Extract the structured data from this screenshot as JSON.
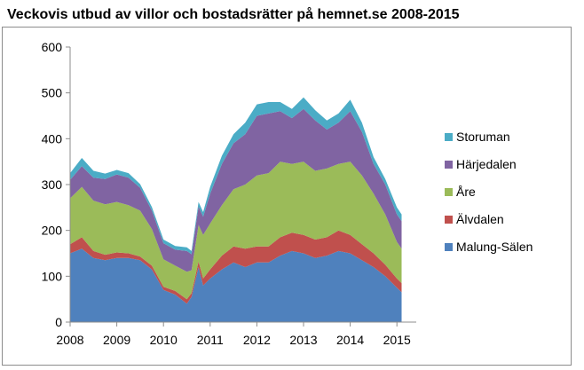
{
  "chart_data": {
    "type": "area",
    "stacked": true,
    "title": "Veckovis utbud av villor och bostadsrätter på hemnet.se 2008-2015",
    "xlabel": "",
    "ylabel": "",
    "xlim": [
      2008,
      2015.2
    ],
    "ylim": [
      0,
      600
    ],
    "yticks": [
      0,
      100,
      200,
      300,
      400,
      500,
      600
    ],
    "xticks": [
      "2008",
      "2009",
      "2010",
      "2011",
      "2012",
      "2013",
      "2014",
      "2015"
    ],
    "grid": false,
    "legend_position": "right",
    "x": [
      2008.0,
      2008.25,
      2008.5,
      2008.75,
      2009.0,
      2009.25,
      2009.5,
      2009.75,
      2010.0,
      2010.25,
      2010.5,
      2010.6,
      2010.75,
      2010.85,
      2011.0,
      2011.25,
      2011.5,
      2011.75,
      2012.0,
      2012.25,
      2012.5,
      2012.75,
      2013.0,
      2013.25,
      2013.5,
      2013.75,
      2014.0,
      2014.25,
      2014.5,
      2014.75,
      2015.0,
      2015.1
    ],
    "series": [
      {
        "name": "Malung-Sälen",
        "color": "#4f81bd",
        "values": [
          150,
          160,
          140,
          135,
          140,
          140,
          135,
          115,
          70,
          60,
          40,
          55,
          120,
          80,
          95,
          115,
          130,
          120,
          130,
          130,
          145,
          155,
          150,
          140,
          145,
          155,
          150,
          135,
          120,
          100,
          75,
          65
        ]
      },
      {
        "name": "Älvdalen",
        "color": "#c0504d",
        "values": [
          20,
          25,
          15,
          12,
          12,
          10,
          8,
          8,
          7,
          8,
          10,
          8,
          12,
          15,
          20,
          30,
          35,
          40,
          35,
          35,
          40,
          40,
          40,
          40,
          40,
          45,
          40,
          35,
          30,
          25,
          20,
          20
        ]
      },
      {
        "name": "Åre",
        "color": "#9bbb59",
        "values": [
          100,
          110,
          110,
          110,
          110,
          105,
          100,
          80,
          60,
          55,
          60,
          50,
          80,
          95,
          100,
          110,
          125,
          140,
          155,
          160,
          165,
          150,
          160,
          150,
          150,
          145,
          160,
          150,
          130,
          110,
          80,
          75
        ]
      },
      {
        "name": "Härjedalen",
        "color": "#8064a2",
        "values": [
          40,
          45,
          50,
          55,
          60,
          60,
          50,
          40,
          35,
          35,
          45,
          35,
          40,
          40,
          65,
          90,
          100,
          110,
          130,
          130,
          110,
          100,
          115,
          110,
          85,
          90,
          110,
          95,
          65,
          65,
          60,
          60
        ]
      },
      {
        "name": "Storuman",
        "color": "#4bacc6",
        "values": [
          15,
          18,
          15,
          12,
          10,
          10,
          8,
          8,
          8,
          8,
          8,
          7,
          10,
          10,
          15,
          18,
          20,
          25,
          25,
          25,
          20,
          20,
          25,
          22,
          20,
          20,
          25,
          20,
          15,
          12,
          15,
          15
        ]
      }
    ]
  }
}
